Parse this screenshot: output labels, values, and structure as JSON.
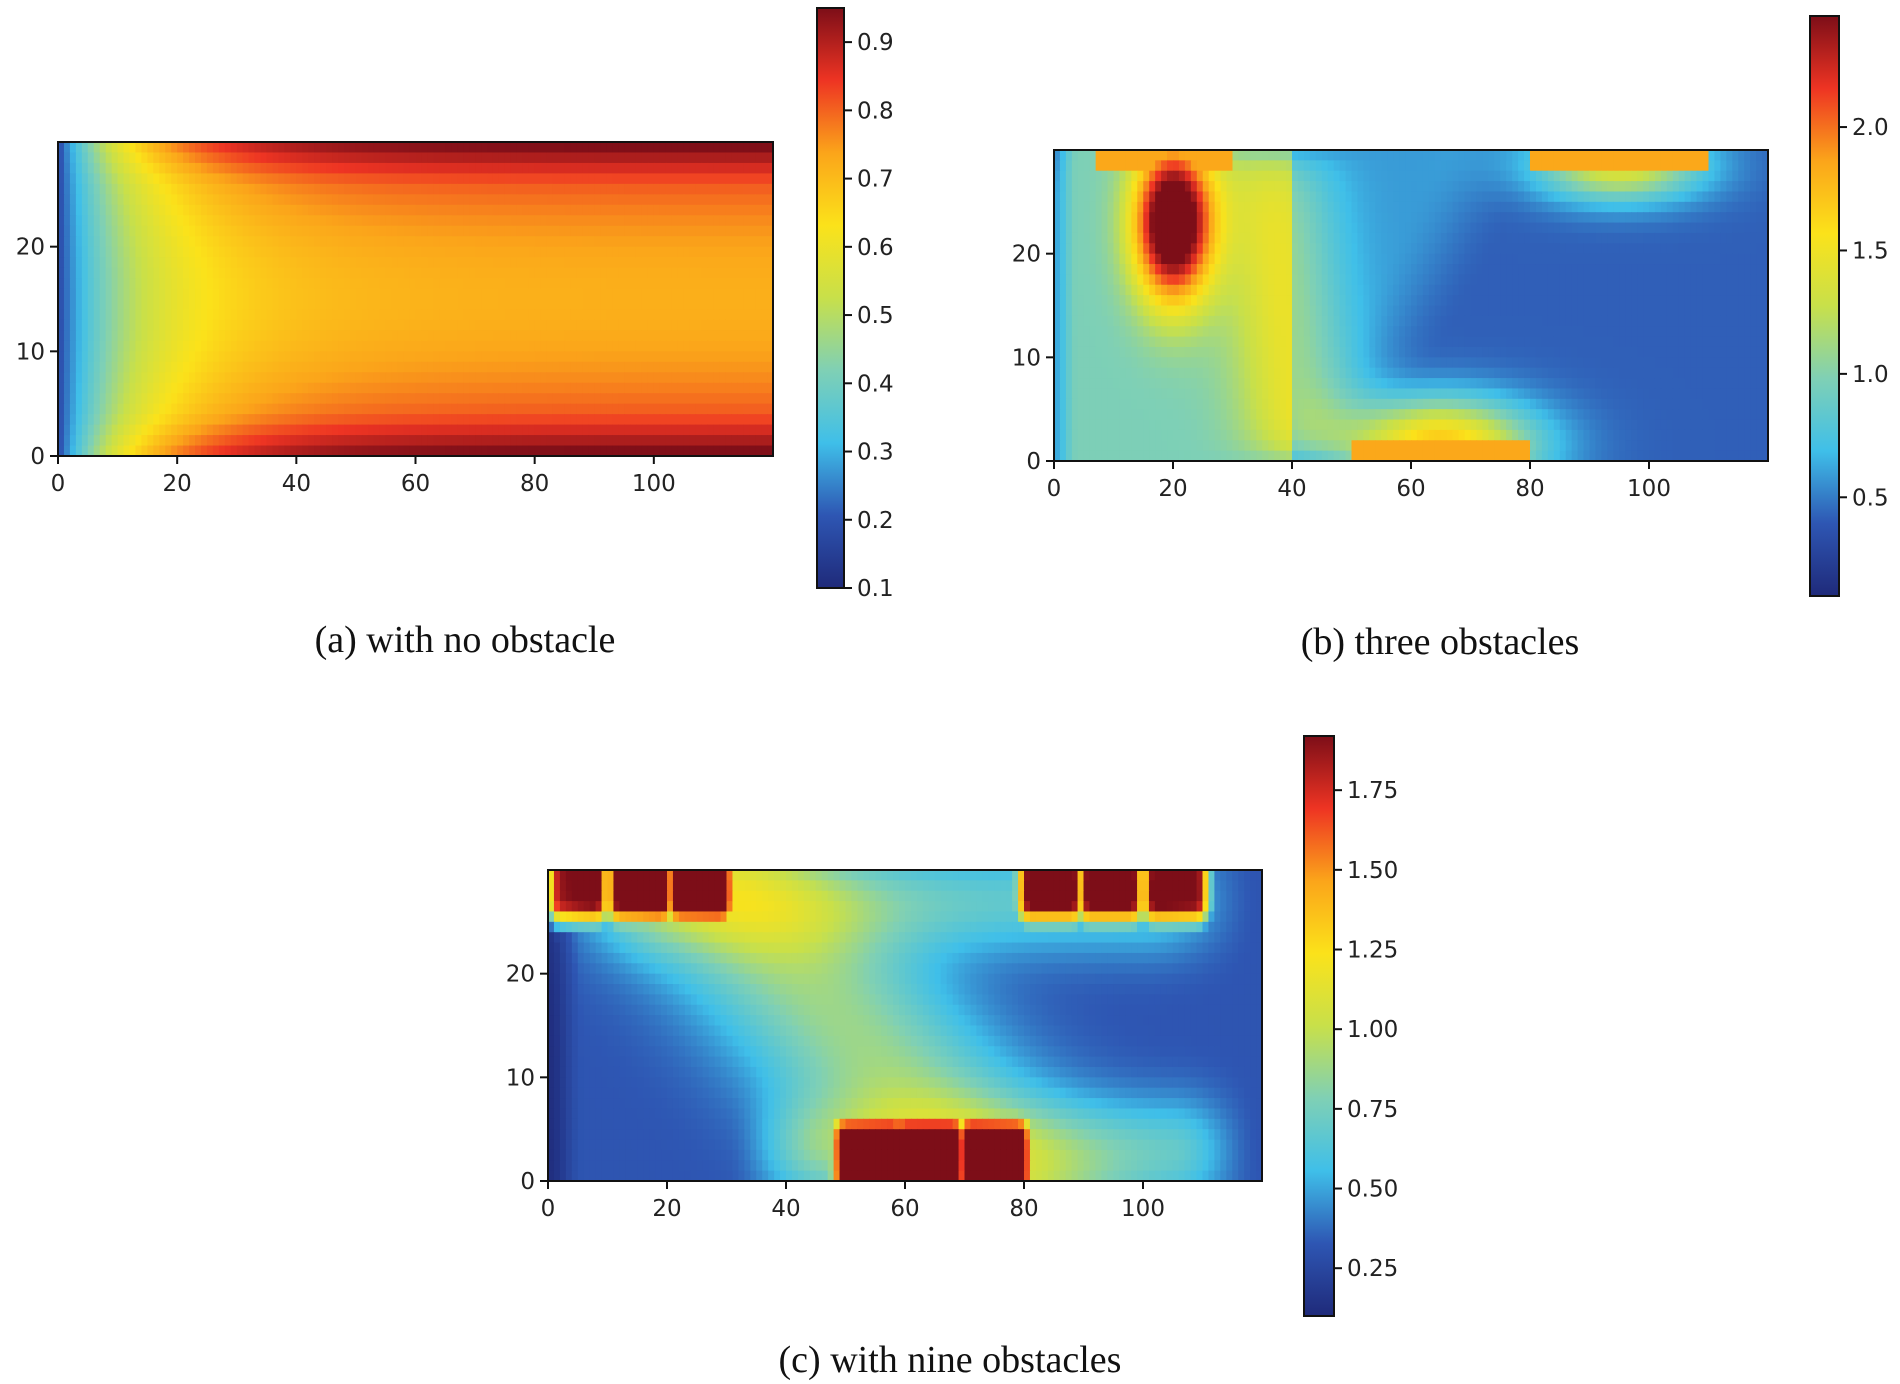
{
  "colormap": {
    "name": "jet-like",
    "stops": [
      "#1f2a7a",
      "#2e56b3",
      "#3fbfe9",
      "#7fd0b5",
      "#c8e04a",
      "#fbe21a",
      "#fba51a",
      "#ee3423",
      "#7d0e18"
    ]
  },
  "chart_data": [
    {
      "type": "heatmap",
      "id": "a",
      "caption": "(a) with no obstacle",
      "xlim": [
        0,
        120
      ],
      "ylim": [
        0,
        30
      ],
      "xticks": [
        0,
        20,
        40,
        60,
        80,
        100
      ],
      "yticks": [
        0,
        10,
        20
      ],
      "colorbar": {
        "min": 0.1,
        "max": 0.95,
        "ticks": [
          0.1,
          0.2,
          0.3,
          0.4,
          0.5,
          0.6,
          0.7,
          0.8,
          0.9
        ],
        "tick_labels": [
          "0.1",
          "0.2",
          "0.3",
          "0.4",
          "0.5",
          "0.6",
          "0.7",
          "0.8",
          "0.9"
        ]
      },
      "field": "developing channel flow: low values at inlet (x=0), parabolic high profile developing downstream; min ~0.1 at inlet, max ~0.95 at walls"
    },
    {
      "type": "heatmap",
      "id": "b",
      "caption": "(b) three obstacles",
      "xlim": [
        0,
        120
      ],
      "ylim": [
        0,
        30
      ],
      "xticks": [
        0,
        20,
        40,
        60,
        80,
        100
      ],
      "yticks": [
        0,
        10,
        20
      ],
      "colorbar": {
        "min": 0.1,
        "max": 2.45,
        "ticks": [
          0.5,
          1.0,
          1.5,
          2.0
        ],
        "tick_labels": [
          "0.5",
          "1.0",
          "1.5",
          "2.0"
        ]
      },
      "obstacles": [
        {
          "x": [
            7,
            30
          ],
          "side": "top"
        },
        {
          "x": [
            50,
            80
          ],
          "side": "bottom"
        },
        {
          "x": [
            80,
            110
          ],
          "side": "top"
        }
      ],
      "field": "hot spot near (20, 23) up to ~2.4; bands near obstacles ~1.7-2.0; background ~0.3-0.5"
    },
    {
      "type": "heatmap",
      "id": "c",
      "caption": "(c) with nine obstacles",
      "xlim": [
        0,
        120
      ],
      "ylim": [
        0,
        30
      ],
      "xticks": [
        0,
        20,
        40,
        60,
        80,
        100
      ],
      "yticks": [
        0,
        10,
        20
      ],
      "colorbar": {
        "min": 0.1,
        "max": 1.92,
        "ticks": [
          0.25,
          0.5,
          0.75,
          1.0,
          1.25,
          1.5,
          1.75
        ],
        "tick_labels": [
          "0.25",
          "0.50",
          "0.75",
          "1.00",
          "1.25",
          "1.50",
          "1.75"
        ]
      },
      "obstacles": [
        {
          "x": [
            2,
            8
          ],
          "side": "top"
        },
        {
          "x": [
            12,
            19
          ],
          "side": "top"
        },
        {
          "x": [
            22,
            29
          ],
          "side": "top"
        },
        {
          "x": [
            50,
            58
          ],
          "side": "bottom"
        },
        {
          "x": [
            60,
            68
          ],
          "side": "bottom"
        },
        {
          "x": [
            71,
            79
          ],
          "side": "bottom"
        },
        {
          "x": [
            81,
            88
          ],
          "side": "top"
        },
        {
          "x": [
            91,
            98
          ],
          "side": "top"
        },
        {
          "x": [
            102,
            109
          ],
          "side": "top"
        }
      ],
      "field": "obstacle cells ~1.5-1.9; diagonal band ~0.75-1.0; background ~0.25-0.5"
    }
  ]
}
